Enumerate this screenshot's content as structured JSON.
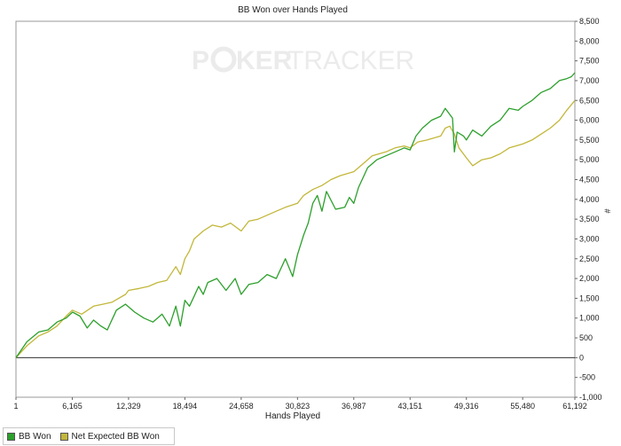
{
  "chart_data": {
    "type": "line",
    "title": "BB Won over Hands Played",
    "xlabel": "Hands Played",
    "ylabel": "#",
    "watermark": {
      "left": "P",
      "mid": "KER",
      "right": "TRACKER"
    },
    "xlim": [
      1,
      61192
    ],
    "ylim": [
      -1000,
      8500
    ],
    "xticks": [
      1,
      6165,
      12329,
      18494,
      24658,
      30823,
      36987,
      43151,
      49316,
      55480,
      61192
    ],
    "xtick_labels": [
      "1",
      "6,165",
      "12,329",
      "18,494",
      "24,658",
      "30,823",
      "36,987",
      "43,151",
      "49,316",
      "55,480",
      "61,192"
    ],
    "yticks": [
      -1000,
      -500,
      0,
      500,
      1000,
      1500,
      2000,
      2500,
      3000,
      3500,
      4000,
      4500,
      5000,
      5500,
      6000,
      6500,
      7000,
      7500,
      8000,
      8500
    ],
    "ytick_labels": [
      "-1,000",
      "-500",
      "0",
      "500",
      "1,000",
      "1,500",
      "2,000",
      "2,500",
      "3,000",
      "3,500",
      "4,000",
      "4,500",
      "5,000",
      "5,500",
      "6,000",
      "6,500",
      "7,000",
      "7,500",
      "8,000",
      "8,500"
    ],
    "grid": false,
    "legend_placement": "bottom-left",
    "series": [
      {
        "name": "BB Won",
        "color": "#2ca02c",
        "x": [
          1,
          1200,
          2500,
          3500,
          4500,
          5500,
          6200,
          7000,
          7800,
          8500,
          9300,
          10000,
          11000,
          12000,
          13000,
          14000,
          15000,
          16000,
          16800,
          17500,
          18000,
          18494,
          19000,
          19500,
          20000,
          20500,
          21000,
          22000,
          23000,
          24000,
          24658,
          25500,
          26500,
          27500,
          28500,
          29500,
          30300,
          30823,
          31500,
          32000,
          32500,
          33000,
          33500,
          34000,
          35000,
          36000,
          36500,
          36987,
          37500,
          38500,
          39500,
          40500,
          41500,
          42500,
          43151,
          43800,
          44500,
          45500,
          46500,
          47000,
          47800,
          48000,
          48300,
          49000,
          49316,
          50000,
          51000,
          52000,
          53000,
          54000,
          55000,
          55480,
          56500,
          57500,
          58500,
          59500,
          60300,
          60800,
          61192
        ],
        "y": [
          0,
          400,
          650,
          700,
          900,
          1000,
          1150,
          1050,
          750,
          950,
          800,
          700,
          1200,
          1350,
          1150,
          1000,
          900,
          1100,
          800,
          1300,
          800,
          1450,
          1300,
          1550,
          1800,
          1600,
          1900,
          2000,
          1700,
          2000,
          1600,
          1850,
          1900,
          2100,
          2000,
          2500,
          2050,
          2600,
          3100,
          3400,
          3900,
          4100,
          3700,
          4200,
          3750,
          3800,
          4050,
          3900,
          4300,
          4800,
          5000,
          5100,
          5200,
          5300,
          5250,
          5600,
          5800,
          6000,
          6100,
          6300,
          6050,
          5200,
          5700,
          5600,
          5500,
          5750,
          5600,
          5850,
          6000,
          6300,
          6250,
          6350,
          6500,
          6700,
          6800,
          7000,
          7050,
          7100,
          7200
        ]
      },
      {
        "name": "Net Expected BB Won",
        "color": "#c2b73a",
        "x": [
          1,
          1200,
          2500,
          3500,
          4500,
          5500,
          6165,
          7200,
          8500,
          9500,
          10500,
          12000,
          12329,
          13500,
          14500,
          15500,
          16500,
          17500,
          18000,
          18494,
          19000,
          19500,
          20500,
          21500,
          22500,
          23500,
          24658,
          25500,
          26500,
          27500,
          28500,
          29500,
          30823,
          31500,
          32500,
          33500,
          34500,
          35500,
          36987,
          38000,
          39000,
          40500,
          41500,
          42500,
          43151,
          44000,
          45000,
          46500,
          47000,
          47500,
          48000,
          48500,
          49316,
          50000,
          51000,
          52000,
          53000,
          54000,
          55480,
          56500,
          57500,
          58500,
          59500,
          60300,
          61192
        ],
        "y": [
          0,
          300,
          550,
          650,
          800,
          1050,
          1200,
          1100,
          1300,
          1350,
          1400,
          1600,
          1700,
          1750,
          1800,
          1900,
          1950,
          2300,
          2100,
          2500,
          2700,
          3000,
          3200,
          3350,
          3300,
          3400,
          3200,
          3450,
          3500,
          3600,
          3700,
          3800,
          3900,
          4100,
          4250,
          4350,
          4500,
          4600,
          4700,
          4900,
          5100,
          5200,
          5300,
          5350,
          5300,
          5450,
          5500,
          5600,
          5800,
          5850,
          5650,
          5300,
          5050,
          4850,
          5000,
          5050,
          5150,
          5300,
          5400,
          5500,
          5650,
          5800,
          6000,
          6250,
          6500
        ]
      }
    ]
  }
}
